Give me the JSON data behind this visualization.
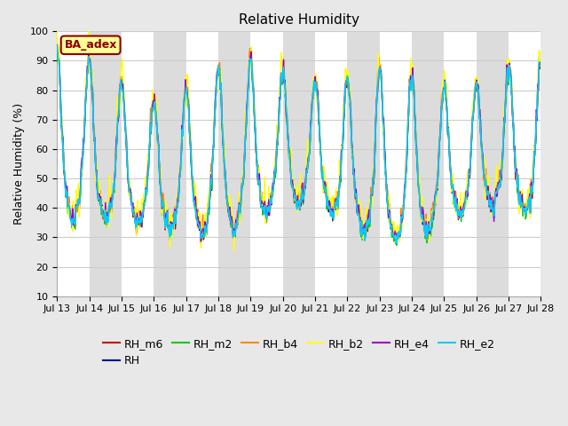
{
  "title": "Relative Humidity",
  "ylabel": "Relative Humidity (%)",
  "ylim": [
    10,
    100
  ],
  "yticks": [
    10,
    20,
    30,
    40,
    50,
    60,
    70,
    80,
    90,
    100
  ],
  "background_color": "#e8e8e8",
  "plot_bg_color": "#ffffff",
  "series": [
    {
      "label": "RH_m6",
      "color": "#cc0000",
      "lw": 1.0,
      "zorder": 3
    },
    {
      "label": "RH",
      "color": "#000099",
      "lw": 1.0,
      "zorder": 3
    },
    {
      "label": "RH_m2",
      "color": "#00cc00",
      "lw": 1.0,
      "zorder": 3
    },
    {
      "label": "RH_b4",
      "color": "#ff8800",
      "lw": 1.0,
      "zorder": 3
    },
    {
      "label": "RH_b2",
      "color": "#ffff00",
      "lw": 1.0,
      "zorder": 3
    },
    {
      "label": "RH_e4",
      "color": "#9900cc",
      "lw": 1.0,
      "zorder": 3
    },
    {
      "label": "RH_e2",
      "color": "#00ccff",
      "lw": 1.2,
      "zorder": 4
    }
  ],
  "annotation_text": "BA_adex",
  "annotation_color": "#8b0000",
  "annotation_bg": "#ffff99",
  "band_color": "#dcdcdc",
  "grid_color": "#cccccc",
  "title_fontsize": 11,
  "label_fontsize": 9,
  "tick_fontsize": 8
}
